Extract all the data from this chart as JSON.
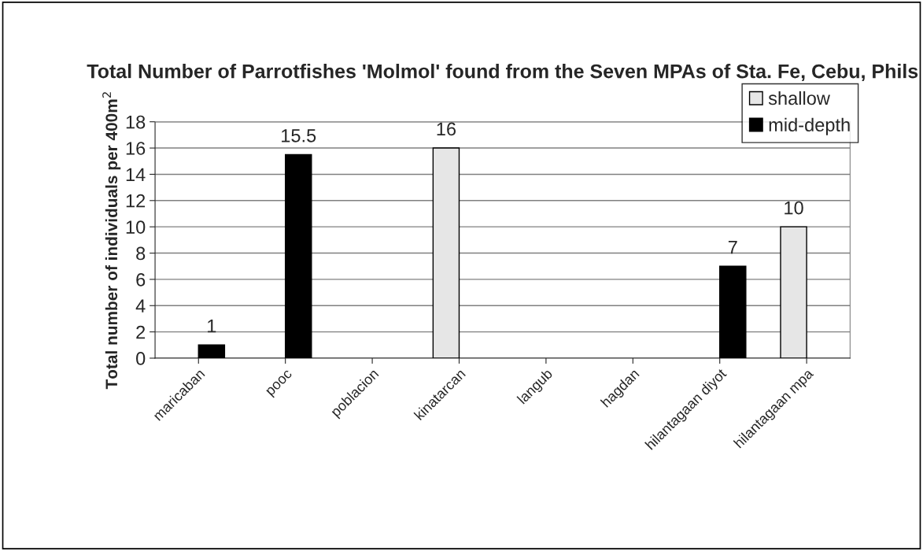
{
  "chart_data": {
    "type": "bar",
    "title": "Total Number of Parrotfishes 'Molmol' found from the Seven MPAs of Sta. Fe, Cebu, Phils",
    "ylabel": "Total number of individuals per 400m$^{2}$",
    "categories": [
      "maricaban",
      "pooc",
      "poblacion",
      "kinatarcan",
      "langub",
      "hagdan",
      "hilantagaan diyot",
      "hilantagaan mpa"
    ],
    "series": [
      {
        "name": "shallow",
        "color": "#e6e6e6",
        "values": [
          null,
          null,
          null,
          16,
          null,
          null,
          null,
          10
        ]
      },
      {
        "name": "mid-depth",
        "color": "#000000",
        "values": [
          1,
          15.5,
          null,
          null,
          null,
          null,
          7,
          null
        ]
      }
    ],
    "ylim": [
      0,
      18
    ],
    "yticks": [
      0,
      2,
      4,
      6,
      8,
      10,
      12,
      14,
      16,
      18
    ],
    "grid": "y",
    "legend": "top right",
    "data_labels": true
  }
}
